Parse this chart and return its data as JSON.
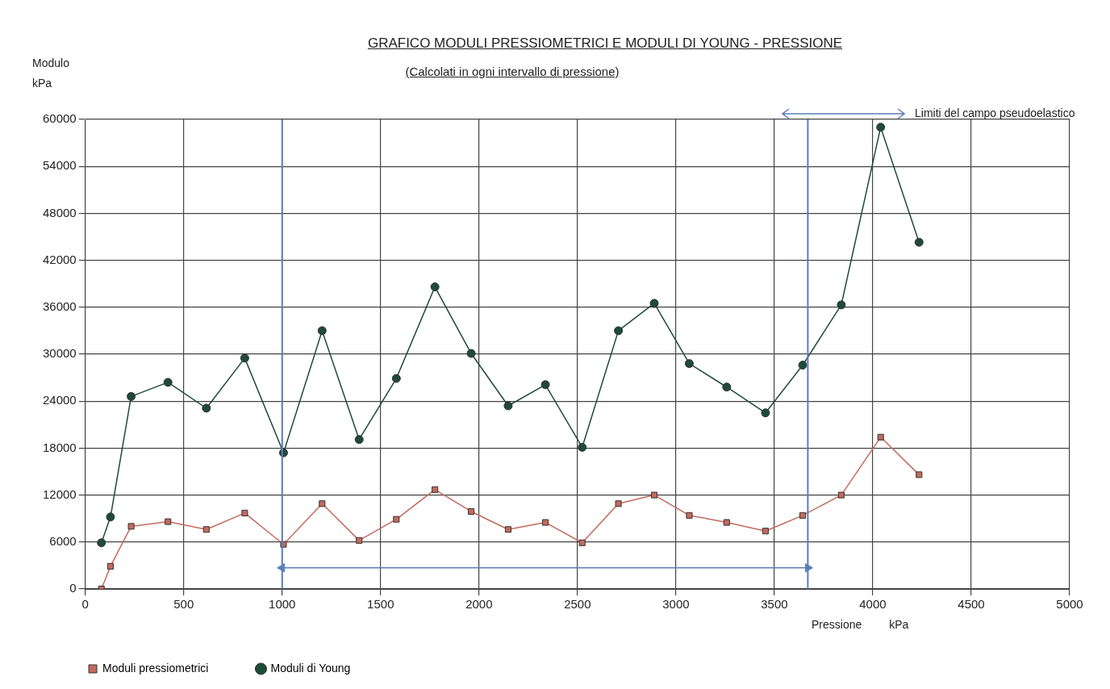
{
  "chart_data": {
    "type": "line",
    "title": "GRAFICO  MODULI PRESSIOMETRICI E MODULI DI YOUNG   -   PRESSIONE",
    "subtitle": "(Calcolati in ogni intervallo di pressione)",
    "xlabel": "Pressione kPa",
    "ylabel": "Modulo kPa",
    "x": [
      82,
      128,
      233,
      420,
      615,
      810,
      1007,
      1203,
      1391,
      1580,
      1776,
      1960,
      2148,
      2337,
      2524,
      2708,
      2890,
      3068,
      3258,
      3455,
      3644,
      3840,
      4040,
      4235
    ],
    "series": [
      {
        "name": "Moduli pressiometrici",
        "color": "#c46a5e",
        "marker": "square",
        "values": [
          0,
          2900,
          8000,
          8600,
          7600,
          9700,
          5700,
          10900,
          6200,
          8900,
          12700,
          9900,
          7600,
          8500,
          5900,
          10900,
          12000,
          9400,
          8500,
          7400,
          9400,
          12000,
          19400,
          14600
        ]
      },
      {
        "color": "#5b7fb8",
        "marker": "triangle",
        "x": [
          1000,
          3670
        ],
        "values": [
          2700,
          2700
        ]
      },
      {
        "name": "Moduli di Young",
        "color": "#1f4a3a",
        "marker": "circle",
        "values": [
          5900,
          9200,
          24600,
          26400,
          23100,
          29500,
          17400,
          33000,
          19100,
          26900,
          38600,
          30100,
          23400,
          26100,
          18100,
          33000,
          36500,
          28800,
          25800,
          22500,
          28600,
          36300,
          59000,
          44300
        ]
      }
    ],
    "xlim": [
      0,
      5000
    ],
    "xticks": [
      0,
      500,
      1000,
      1500,
      2000,
      2500,
      3000,
      3500,
      4000,
      4500,
      5000
    ],
    "ylim": [
      0,
      60000
    ],
    "yticks": [
      0,
      6000,
      12000,
      18000,
      24000,
      30000,
      36000,
      42000,
      48000,
      54000,
      60000
    ],
    "ref_lines": [
      {
        "axis": "x",
        "value": 1000,
        "color": "#5b7fb8"
      },
      {
        "axis": "x",
        "value": 3670,
        "color": "#5b7fb8"
      }
    ],
    "annotations": [
      "Limiti del campo pseudoelastico"
    ],
    "grid": true,
    "legend": "bottom left",
    "line_style": "solid"
  }
}
